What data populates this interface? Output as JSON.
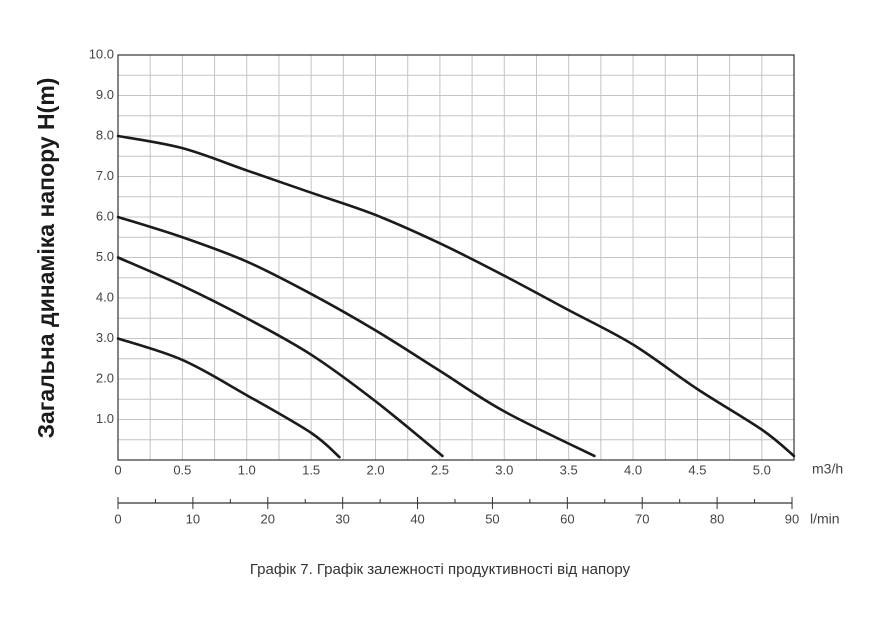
{
  "chart_data": {
    "type": "line",
    "y_label": "Загальна динаміка напору H(m)",
    "x_unit": "m3/h",
    "x2_unit": "l/min",
    "caption": "Графік 7. Графік залежності продуктивності від напору",
    "xlim": [
      0,
      5.25
    ],
    "ylim": [
      0,
      10
    ],
    "x2lim": [
      0,
      90
    ],
    "xticks": [
      0,
      0.5,
      {
        "value": 1,
        "label": "1.0"
      },
      1.5,
      {
        "value": 2,
        "label": "2.0"
      },
      2.5,
      {
        "value": 3,
        "label": "3.0"
      },
      3.5,
      {
        "value": 4,
        "label": "4.0"
      },
      4.5,
      {
        "value": 5,
        "label": "5.0"
      }
    ],
    "minor_xticks": [
      0.25,
      0.75,
      1.25,
      1.75,
      2.25,
      2.75,
      3.25,
      3.75,
      4.25,
      4.75,
      5.25
    ],
    "yticks": [
      {
        "value": 1,
        "label": "1.0"
      },
      {
        "value": 2,
        "label": "2.0"
      },
      {
        "value": 3,
        "label": "3.0"
      },
      {
        "value": 4,
        "label": "4.0"
      },
      {
        "value": 5,
        "label": "5.0"
      },
      {
        "value": 6,
        "label": "6.0"
      },
      {
        "value": 7,
        "label": "7.0"
      },
      {
        "value": 8,
        "label": "8.0"
      },
      {
        "value": 9,
        "label": "9.0"
      },
      {
        "value": 10,
        "label": "10.0"
      }
    ],
    "minor_yticks": [
      0.5,
      1.5,
      2.5,
      3.5,
      4.5,
      5.5,
      6.5,
      7.5,
      8.5,
      9.5
    ],
    "x2ticks": [
      0,
      10,
      20,
      30,
      40,
      50,
      60,
      70,
      80,
      90
    ],
    "minor_x2ticks": [
      5,
      15,
      25,
      35,
      45,
      55,
      65,
      75,
      85
    ],
    "grid": true,
    "series": [
      {
        "color": "#1b1b1b",
        "x": [
          0,
          0.5,
          1.0,
          1.5,
          1.72
        ],
        "values": [
          3.0,
          2.47,
          1.6,
          0.67,
          0.07
        ]
      },
      {
        "color": "#1b1b1b",
        "x": [
          0,
          0.5,
          1.0,
          1.5,
          2.0,
          2.52
        ],
        "values": [
          5.0,
          4.3,
          3.5,
          2.6,
          1.45,
          0.1
        ]
      },
      {
        "color": "#1b1b1b",
        "x": [
          0,
          0.5,
          1.0,
          1.5,
          2.0,
          2.5,
          3.0,
          3.7
        ],
        "values": [
          6.0,
          5.5,
          4.9,
          4.1,
          3.2,
          2.2,
          1.2,
          0.1
        ]
      },
      {
        "color": "#1b1b1b",
        "x": [
          0,
          0.5,
          1.0,
          1.5,
          2.0,
          2.5,
          3.0,
          3.5,
          4.0,
          4.5,
          5.0,
          5.25
        ],
        "values": [
          8.0,
          7.7,
          7.15,
          6.6,
          6.05,
          5.35,
          4.55,
          3.7,
          2.85,
          1.75,
          0.75,
          0.1
        ]
      }
    ]
  }
}
